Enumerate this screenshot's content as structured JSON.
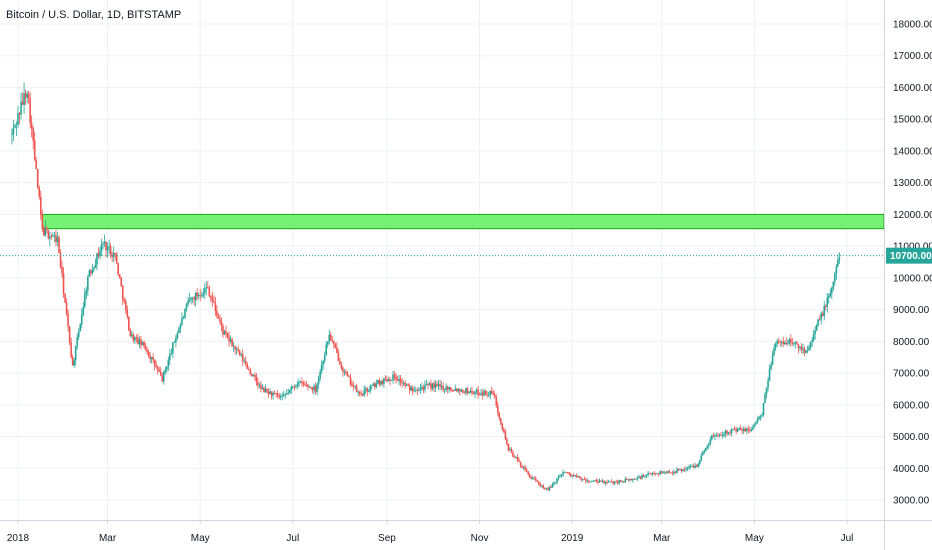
{
  "header": {
    "title": "Bitcoin / U.S. Dollar, 1D, BITSTAMP"
  },
  "colors": {
    "up": "#26a69a",
    "down": "#ef5350",
    "zone_fill": "#76f176",
    "zone_stroke": "#1aaa1a",
    "price_line": "#26a69a",
    "grid": "#eef0f3",
    "axis_text": "#131722"
  },
  "chart_data": {
    "type": "line",
    "subtype": "candlestick",
    "title": "Bitcoin / U.S. Dollar, 1D, BITSTAMP",
    "x_ticks": [
      "2018",
      "Mar",
      "May",
      "Jul",
      "Sep",
      "Nov",
      "2019",
      "Mar",
      "May",
      "Jul"
    ],
    "y_ticks": [
      "3000.00",
      "4000.00",
      "5000.00",
      "6000.00",
      "7000.00",
      "8000.00",
      "9000.00",
      "10000.00",
      "11000.00",
      "12000.00",
      "13000.00",
      "14000.00",
      "15000.00",
      "16000.00",
      "17000.00",
      "18000.00"
    ],
    "ylim": [
      2600,
      18400
    ],
    "x_range": [
      "2017-12-25",
      "2019-07-15"
    ],
    "grid": true,
    "last_price": "10700.00",
    "last_price_value": 10700,
    "zone": {
      "low": 11550,
      "high": 12000,
      "from": "2018-01-17",
      "to": "2019-07-15"
    },
    "series": [
      {
        "x": [
          "2017-12-28",
          "2018-01-07",
          "2018-01-17",
          "2018-01-27",
          "2018-02-06",
          "2018-02-16",
          "2018-02-26",
          "2018-03-06",
          "2018-03-16",
          "2018-03-26",
          "2018-04-06",
          "2018-04-16",
          "2018-04-24",
          "2018-05-06",
          "2018-05-16",
          "2018-05-28",
          "2018-06-10",
          "2018-06-24",
          "2018-07-04",
          "2018-07-16",
          "2018-07-25",
          "2018-08-04",
          "2018-08-14",
          "2018-08-26",
          "2018-09-06",
          "2018-09-16",
          "2018-10-01",
          "2018-10-16",
          "2018-10-28",
          "2018-11-10",
          "2018-11-20",
          "2018-12-05",
          "2018-12-16",
          "2018-12-26",
          "2019-01-10",
          "2019-01-26",
          "2019-02-10",
          "2019-02-24",
          "2019-03-10",
          "2019-03-24",
          "2019-04-03",
          "2019-04-16",
          "2019-04-28",
          "2019-05-06",
          "2019-05-14",
          "2019-05-24",
          "2019-06-04",
          "2019-06-14",
          "2019-06-20",
          "2019-06-26"
        ],
        "y": [
          14500,
          16000,
          11500,
          11200,
          7200,
          10000,
          11100,
          10700,
          8200,
          7800,
          6800,
          8300,
          9300,
          9700,
          8300,
          7500,
          6500,
          6200,
          6700,
          6500,
          8200,
          7000,
          6300,
          6700,
          6900,
          6500,
          6600,
          6500,
          6400,
          6350,
          4600,
          3700,
          3300,
          3900,
          3600,
          3550,
          3650,
          3850,
          3900,
          4100,
          5000,
          5200,
          5200,
          5700,
          7900,
          8000,
          7700,
          8800,
          9500,
          10700
        ]
      }
    ]
  }
}
